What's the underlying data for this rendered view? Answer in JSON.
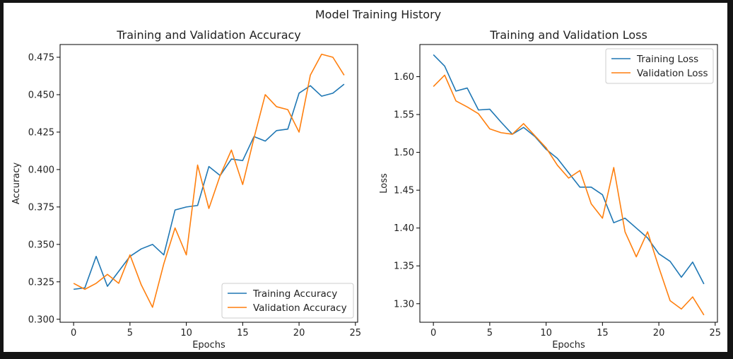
{
  "figure": {
    "suptitle": "Model Training History",
    "colors": {
      "training": "#1f77b4",
      "validation": "#ff7f0e",
      "background": "#ffffff",
      "frame_border": "#141414"
    }
  },
  "chart_data": [
    {
      "type": "line",
      "title": "Training and Validation Accuracy",
      "xlabel": "Epochs",
      "ylabel": "Accuracy",
      "x": [
        0,
        1,
        2,
        3,
        4,
        5,
        6,
        7,
        8,
        9,
        10,
        11,
        12,
        13,
        14,
        15,
        16,
        17,
        18,
        19,
        20,
        21,
        22,
        23,
        24
      ],
      "xlim": [
        -1.2,
        25.2
      ],
      "ylim": [
        0.298,
        0.4835
      ],
      "xticks": [
        0,
        5,
        10,
        15,
        20,
        25
      ],
      "yticks": [
        0.3,
        0.325,
        0.35,
        0.375,
        0.4,
        0.425,
        0.45,
        0.475
      ],
      "ytick_labels": [
        "0.300",
        "0.325",
        "0.350",
        "0.375",
        "0.400",
        "0.425",
        "0.450",
        "0.475"
      ],
      "legend_position": "lower-right",
      "grid": false,
      "series": [
        {
          "name": "Training Accuracy",
          "color": "#1f77b4",
          "values": [
            0.32,
            0.321,
            0.342,
            0.322,
            0.332,
            0.342,
            0.347,
            0.35,
            0.343,
            0.373,
            0.375,
            0.376,
            0.402,
            0.396,
            0.407,
            0.406,
            0.422,
            0.419,
            0.426,
            0.427,
            0.451,
            0.456,
            0.449,
            0.451,
            0.457
          ]
        },
        {
          "name": "Validation Accuracy",
          "color": "#ff7f0e",
          "values": [
            0.324,
            0.32,
            0.324,
            0.33,
            0.324,
            0.343,
            0.323,
            0.308,
            0.337,
            0.361,
            0.343,
            0.403,
            0.374,
            0.396,
            0.413,
            0.39,
            0.421,
            0.45,
            0.442,
            0.44,
            0.425,
            0.463,
            0.477,
            0.475,
            0.463
          ]
        }
      ]
    },
    {
      "type": "line",
      "title": "Training and Validation Loss",
      "xlabel": "Epochs",
      "ylabel": "Loss",
      "x": [
        0,
        1,
        2,
        3,
        4,
        5,
        6,
        7,
        8,
        9,
        10,
        11,
        12,
        13,
        14,
        15,
        16,
        17,
        18,
        19,
        20,
        21,
        22,
        23,
        24
      ],
      "xlim": [
        -1.2,
        25.2
      ],
      "ylim": [
        1.2755,
        1.6425
      ],
      "xticks": [
        0,
        5,
        10,
        15,
        20,
        25
      ],
      "yticks": [
        1.3,
        1.35,
        1.4,
        1.45,
        1.5,
        1.55,
        1.6
      ],
      "ytick_labels": [
        "1.30",
        "1.35",
        "1.40",
        "1.45",
        "1.50",
        "1.55",
        "1.60"
      ],
      "legend_position": "upper-right",
      "grid": false,
      "series": [
        {
          "name": "Training Loss",
          "color": "#1f77b4",
          "values": [
            1.629,
            1.614,
            1.581,
            1.585,
            1.556,
            1.557,
            1.54,
            1.524,
            1.533,
            1.521,
            1.504,
            1.492,
            1.473,
            1.454,
            1.454,
            1.444,
            1.407,
            1.413,
            1.4,
            1.387,
            1.366,
            1.356,
            1.335,
            1.355,
            1.326
          ]
        },
        {
          "name": "Validation Loss",
          "color": "#ff7f0e",
          "values": [
            1.587,
            1.602,
            1.568,
            1.56,
            1.551,
            1.531,
            1.526,
            1.524,
            1.538,
            1.522,
            1.506,
            1.483,
            1.466,
            1.476,
            1.432,
            1.413,
            1.48,
            1.395,
            1.362,
            1.395,
            1.348,
            1.304,
            1.293,
            1.309,
            1.285
          ]
        }
      ]
    }
  ]
}
